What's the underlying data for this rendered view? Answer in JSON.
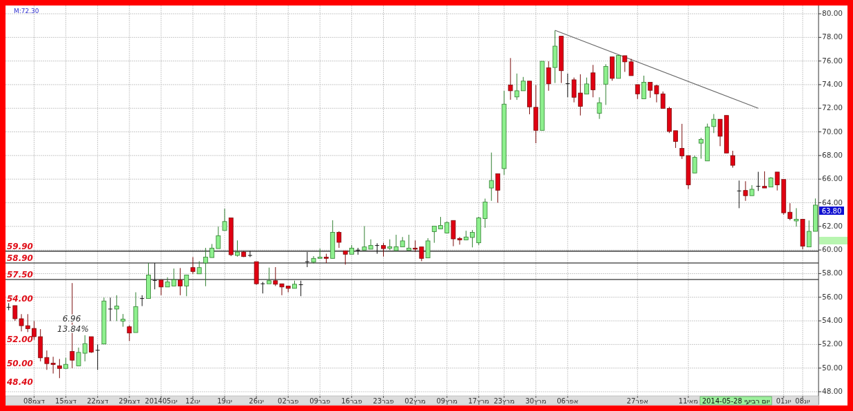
{
  "chart_data": {
    "type": "candlestick",
    "categories": [
      null,
      null,
      null,
      null,
      "08דצמ",
      null,
      null,
      null,
      null,
      "15דצמ",
      null,
      null,
      null,
      null,
      "22דצמ",
      null,
      null,
      null,
      null,
      "29דצמ",
      null,
      null,
      null,
      null,
      "201405ינו",
      null,
      null,
      null,
      null,
      "12ינו",
      null,
      null,
      null,
      null,
      "19ינו",
      null,
      null,
      null,
      null,
      "26ינו",
      null,
      null,
      null,
      null,
      "02פבר",
      null,
      null,
      null,
      null,
      "09פבר",
      null,
      null,
      null,
      null,
      "16פבר",
      null,
      null,
      null,
      null,
      "23פבר",
      null,
      null,
      null,
      null,
      "02מרץ",
      null,
      null,
      null,
      null,
      "09מרץ",
      null,
      null,
      null,
      null,
      "17מרץ",
      null,
      null,
      null,
      "23מרץ",
      null,
      null,
      null,
      null,
      "30מרץ",
      null,
      null,
      null,
      null,
      "06אפר",
      null,
      null,
      null,
      null,
      null,
      null,
      null,
      null,
      null,
      null,
      "27אפר",
      null,
      null,
      null,
      null,
      null,
      null,
      null,
      "11מאי",
      null,
      null,
      null,
      null,
      null,
      null,
      null,
      null,
      null,
      null,
      null,
      null,
      null,
      null,
      "01יונ",
      null,
      null,
      "08יונ",
      null,
      null
    ],
    "ohlc": [
      [
        55.15,
        55.5,
        54.9,
        55.15
      ],
      [
        55.29,
        55.29,
        54.0,
        54.18
      ],
      [
        54.18,
        54.57,
        53.11,
        53.59
      ],
      [
        53.59,
        54.57,
        53.05,
        53.34
      ],
      [
        53.36,
        53.98,
        52.39,
        52.66
      ],
      [
        52.66,
        53.3,
        50.57,
        50.87
      ],
      [
        50.9,
        51.49,
        49.85,
        50.38
      ],
      [
        50.42,
        50.96,
        49.54,
        50.3
      ],
      [
        50.2,
        50.77,
        49.15,
        49.97
      ],
      [
        49.97,
        50.87,
        49.97,
        50.32
      ],
      [
        51.41,
        57.2,
        49.99,
        50.67
      ],
      [
        50.18,
        51.74,
        50.18,
        51.33
      ],
      [
        51.26,
        52.78,
        50.57,
        52.07
      ],
      [
        52.66,
        52.66,
        51.29,
        51.35
      ],
      [
        51.51,
        52.0,
        49.85,
        51.51
      ],
      [
        52.04,
        55.97,
        52.04,
        55.68
      ],
      [
        55.0,
        55.97,
        53.98,
        55.0
      ],
      [
        55.0,
        56.17,
        53.98,
        55.25
      ],
      [
        53.98,
        54.58,
        53.5,
        54.14
      ],
      [
        53.5,
        53.63,
        52.29,
        52.97
      ],
      [
        53.01,
        56.42,
        53.01,
        55.21
      ],
      [
        55.89,
        56.17,
        55.25,
        55.89
      ],
      [
        55.89,
        58.9,
        55.89,
        57.88
      ],
      [
        57.42,
        58.9,
        56.67,
        57.42
      ],
      [
        57.45,
        57.45,
        56.17,
        56.87
      ],
      [
        56.87,
        57.69,
        56.87,
        57.3
      ],
      [
        56.95,
        58.43,
        56.95,
        57.49
      ],
      [
        57.45,
        58.47,
        56.17,
        56.95
      ],
      [
        56.95,
        57.88,
        56.09,
        57.88
      ],
      [
        58.51,
        59.4,
        57.98,
        58.18
      ],
      [
        57.98,
        59.05,
        57.98,
        58.51
      ],
      [
        58.9,
        60.18,
        56.93,
        59.4
      ],
      [
        59.36,
        60.51,
        59.36,
        60.16
      ],
      [
        60.12,
        61.98,
        60.12,
        61.2
      ],
      [
        61.65,
        63.5,
        61.65,
        62.41
      ],
      [
        62.72,
        62.72,
        59.48,
        59.6
      ],
      [
        59.54,
        60.81,
        59.44,
        59.83
      ],
      [
        59.83,
        59.93,
        59.4,
        59.44
      ],
      [
        59.54,
        59.93,
        59.4,
        59.54
      ],
      [
        59.01,
        59.01,
        57.06,
        57.14
      ],
      [
        57.14,
        57.3,
        56.32,
        57.14
      ],
      [
        57.14,
        58.51,
        57.14,
        57.4
      ],
      [
        57.4,
        58.55,
        56.95,
        57.1
      ],
      [
        57.14,
        57.14,
        56.17,
        56.87
      ],
      [
        56.95,
        56.95,
        56.42,
        56.75
      ],
      [
        56.75,
        57.4,
        56.75,
        57.1
      ],
      [
        57.06,
        57.4,
        56.09,
        57.06
      ],
      [
        59.01,
        59.83,
        58.55,
        59.01
      ],
      [
        58.97,
        59.48,
        58.86,
        59.29
      ],
      [
        59.29,
        60.12,
        59.25,
        59.4
      ],
      [
        59.4,
        59.68,
        58.9,
        59.29
      ],
      [
        59.29,
        62.52,
        59.29,
        61.49
      ],
      [
        61.49,
        61.59,
        60.18,
        60.65
      ],
      [
        59.93,
        59.93,
        58.76,
        59.64
      ],
      [
        59.64,
        60.42,
        59.64,
        60.16
      ],
      [
        59.99,
        60.18,
        59.6,
        59.99
      ],
      [
        59.99,
        62.02,
        59.99,
        60.26
      ],
      [
        60.07,
        60.9,
        60.07,
        60.38
      ],
      [
        60.38,
        60.57,
        59.68,
        60.38
      ],
      [
        60.38,
        60.61,
        59.44,
        60.12
      ],
      [
        60.14,
        60.9,
        59.99,
        60.28
      ],
      [
        59.95,
        61.29,
        59.95,
        60.28
      ],
      [
        60.26,
        61.1,
        60.26,
        60.77
      ],
      [
        59.97,
        61.29,
        59.97,
        60.16
      ],
      [
        60.16,
        60.81,
        59.83,
        60.07
      ],
      [
        60.26,
        60.26,
        59.05,
        59.29
      ],
      [
        59.33,
        61.0,
        59.33,
        60.77
      ],
      [
        61.55,
        62.02,
        60.61,
        62.02
      ],
      [
        61.78,
        62.8,
        61.78,
        62.07
      ],
      [
        61.43,
        62.41,
        61.43,
        62.33
      ],
      [
        62.5,
        62.5,
        60.32,
        60.94
      ],
      [
        60.98,
        61.1,
        60.45,
        60.85
      ],
      [
        60.85,
        61.63,
        60.85,
        61.1
      ],
      [
        61.06,
        61.69,
        60.22,
        61.49
      ],
      [
        60.61,
        62.8,
        60.42,
        62.72
      ],
      [
        62.66,
        64.35,
        61.88,
        64.06
      ],
      [
        65.25,
        68.25,
        64.16,
        65.88
      ],
      [
        66.46,
        66.46,
        64.0,
        65.06
      ],
      [
        66.89,
        73.48,
        66.36,
        72.35
      ],
      [
        73.97,
        76.25,
        72.72,
        73.48
      ],
      [
        72.96,
        74.94,
        72.71,
        73.48
      ],
      [
        73.48,
        74.65,
        73.48,
        74.3
      ],
      [
        74.3,
        74.3,
        71.49,
        72.12
      ],
      [
        72.08,
        73.97,
        69.04,
        70.13
      ],
      [
        70.13,
        75.98,
        70.13,
        75.98
      ],
      [
        75.43,
        75.98,
        73.48,
        74.07
      ],
      [
        75.45,
        78.58,
        74.14,
        77.26
      ],
      [
        78.1,
        78.1,
        74.14,
        75.18
      ],
      [
        74.08,
        74.94,
        72.93,
        74.08
      ],
      [
        74.41,
        74.6,
        72.5,
        72.93
      ],
      [
        73.29,
        74.88,
        71.39,
        72.16
      ],
      [
        73.2,
        74.6,
        73.2,
        74.06
      ],
      [
        75.0,
        75.67,
        72.93,
        73.56
      ],
      [
        71.57,
        72.93,
        71.1,
        72.47
      ],
      [
        74.04,
        75.73,
        72.28,
        75.54
      ],
      [
        76.35,
        76.35,
        74.33,
        74.53
      ],
      [
        74.53,
        76.51,
        74.53,
        76.47
      ],
      [
        76.45,
        76.45,
        75.08,
        75.93
      ],
      [
        75.93,
        76.18,
        74.76,
        74.76
      ],
      [
        74.0,
        74.0,
        72.78,
        73.22
      ],
      [
        72.8,
        74.76,
        72.8,
        74.2
      ],
      [
        74.2,
        74.2,
        72.89,
        73.52
      ],
      [
        73.91,
        74.0,
        72.5,
        73.22
      ],
      [
        73.22,
        73.42,
        71.99,
        71.99
      ],
      [
        71.99,
        72.12,
        69.9,
        70.04
      ],
      [
        70.1,
        70.1,
        68.64,
        69.19
      ],
      [
        68.6,
        70.68,
        67.71,
        67.96
      ],
      [
        67.99,
        67.99,
        65.16,
        65.51
      ],
      [
        66.52,
        67.99,
        66.52,
        67.84
      ],
      [
        69.04,
        69.51,
        67.73,
        69.37
      ],
      [
        67.54,
        70.7,
        67.54,
        70.41
      ],
      [
        70.45,
        71.51,
        69.9,
        71.07
      ],
      [
        71.07,
        71.07,
        68.79,
        69.63
      ],
      [
        71.39,
        71.39,
        68.21,
        68.21
      ],
      [
        67.99,
        68.4,
        66.97,
        67.17
      ],
      [
        65.0,
        65.88,
        63.54,
        65.0
      ],
      [
        65.04,
        65.82,
        64.16,
        64.6
      ],
      [
        64.6,
        65.49,
        64.6,
        65.14
      ],
      [
        65.39,
        66.62,
        65.0,
        65.39
      ],
      [
        65.39,
        66.66,
        65.25,
        65.25
      ],
      [
        65.33,
        66.17,
        65.33,
        66.1
      ],
      [
        66.6,
        66.6,
        65.04,
        65.51
      ],
      [
        65.97,
        65.97,
        62.99,
        63.15
      ],
      [
        63.2,
        63.96,
        62.52,
        62.66
      ],
      [
        62.46,
        63.54,
        61.98,
        62.6
      ],
      [
        62.6,
        62.6,
        60.06,
        60.32
      ],
      [
        60.26,
        62.5,
        60.26,
        61.58
      ],
      [
        61.58,
        64.36,
        61.58,
        63.8
      ]
    ],
    "series": [
      {
        "type": "line",
        "color": "#666666",
        "values": [
          null,
          null,
          null,
          null,
          null,
          null,
          null,
          null,
          null,
          null,
          null,
          null,
          null,
          null,
          null,
          null,
          null,
          null,
          null,
          null,
          null,
          null,
          null,
          null,
          null,
          null,
          null,
          null,
          null,
          null,
          null,
          null,
          null,
          null,
          null,
          null,
          null,
          null,
          null,
          null,
          null,
          null,
          null,
          null,
          null,
          null,
          null,
          null,
          null,
          null,
          null,
          null,
          null,
          null,
          null,
          null,
          null,
          null,
          null,
          null,
          null,
          null,
          null,
          null,
          null,
          null,
          null,
          null,
          null,
          null,
          null,
          null,
          null,
          null,
          null,
          null,
          null,
          null,
          null,
          null,
          null,
          null,
          null,
          null,
          null,
          null,
          78.6,
          null,
          null,
          null,
          null,
          null,
          null,
          null,
          null,
          null,
          null,
          null,
          null,
          null,
          null,
          null,
          null,
          null,
          null,
          null,
          null,
          null,
          null,
          null,
          null,
          null,
          null,
          null,
          null,
          null,
          null,
          null,
          72.0,
          null,
          null,
          null,
          null,
          null,
          null,
          null,
          null,
          null
        ]
      }
    ],
    "ylim": [
      47.65,
      80.7
    ],
    "yticks": [
      {
        "value": 48,
        "label": "48.00"
      },
      {
        "value": 50,
        "label": "50.00"
      },
      {
        "value": 52,
        "label": "52.00"
      },
      {
        "value": 54,
        "label": "54.00"
      },
      {
        "value": 56,
        "label": "56.00"
      },
      {
        "value": 58,
        "label": "58.00"
      },
      {
        "value": 60,
        "label": "60.00"
      },
      {
        "value": 62,
        "label": "62.00"
      },
      {
        "value": 64,
        "label": "64.00"
      },
      {
        "value": 66,
        "label": "66.00"
      },
      {
        "value": 68,
        "label": "68.00"
      },
      {
        "value": 70,
        "label": "70.00"
      },
      {
        "value": 72,
        "label": "72.00"
      },
      {
        "value": 74,
        "label": "74.00"
      },
      {
        "value": 76,
        "label": "76.00"
      },
      {
        "value": 78,
        "label": "78.00"
      },
      {
        "value": 80,
        "label": "80.00"
      }
    ],
    "grid": true,
    "ref_lines": [
      {
        "axis": "y",
        "value": 59.9,
        "label": "59.90",
        "color": "#111111"
      },
      {
        "axis": "y",
        "value": 58.9,
        "label": "58.90",
        "color": "#555555"
      },
      {
        "axis": "y",
        "value": 57.5,
        "label": "57.50",
        "color": "#555555"
      }
    ],
    "annotations": [
      "M:72.30",
      "6.96",
      "13.84%",
      "54.00",
      "52.00",
      "50.00",
      "48.40",
      "63.80",
      "יום רביעי 2014-05-28"
    ]
  }
}
